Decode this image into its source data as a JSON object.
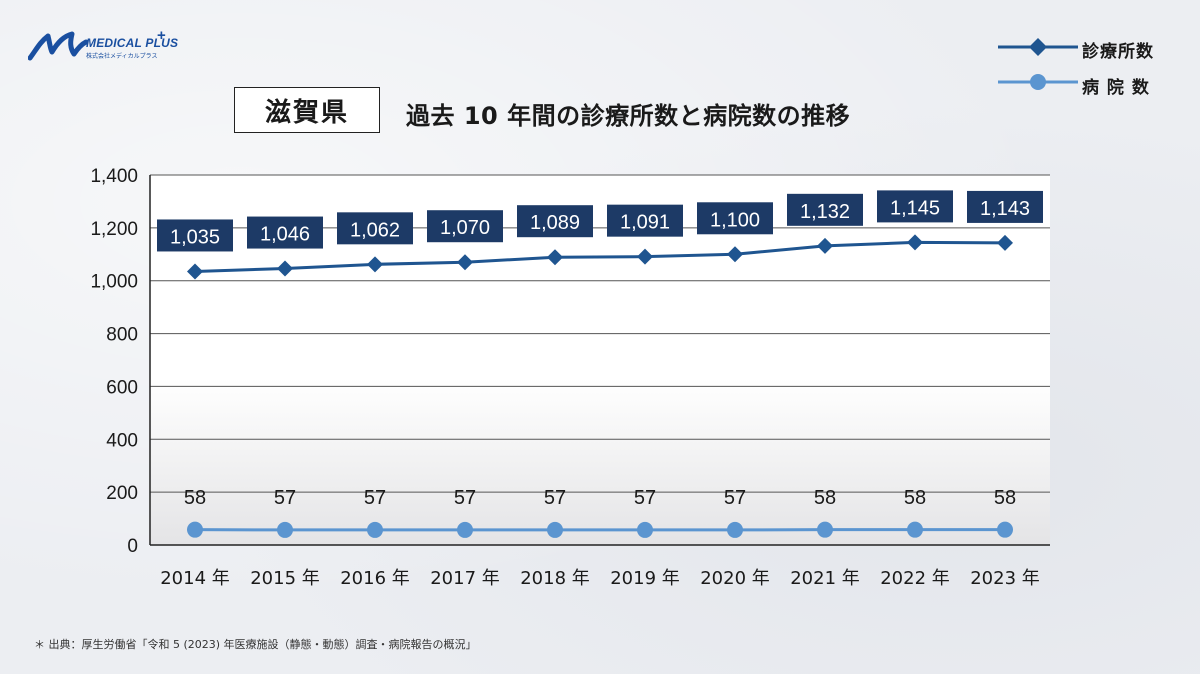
{
  "logo": {
    "name": "MEDICAL PLUS",
    "plus": "+",
    "company": "株式会社メディカルプラス"
  },
  "header": {
    "prefecture": "滋賀県",
    "title": "過去 10 年間の診療所数と病院数の推移"
  },
  "colors": {
    "clinics": "#1f5590",
    "clinic_label_bg": "#1d3a66",
    "hospitals": "#5b95d0"
  },
  "chart_data": {
    "type": "line",
    "categories": [
      "2014 年",
      "2015 年",
      "2016 年",
      "2017 年",
      "2018 年",
      "2019 年",
      "2020 年",
      "2021 年",
      "2022 年",
      "2023 年"
    ],
    "series": [
      {
        "name": "診療所数",
        "values": [
          1035,
          1046,
          1062,
          1070,
          1089,
          1091,
          1100,
          1132,
          1145,
          1143
        ],
        "labels": [
          "1,035",
          "1,046",
          "1,062",
          "1,070",
          "1,089",
          "1,091",
          "1,100",
          "1,132",
          "1,145",
          "1,143"
        ],
        "marker": "diamond"
      },
      {
        "name": "病 院 数",
        "values": [
          58,
          57,
          57,
          57,
          57,
          57,
          57,
          58,
          58,
          58
        ],
        "labels": [
          "58",
          "57",
          "57",
          "57",
          "57",
          "57",
          "57",
          "58",
          "58",
          "58"
        ],
        "marker": "circle"
      }
    ],
    "ylim": [
      0,
      1400
    ],
    "yticks": [
      0,
      200,
      400,
      600,
      800,
      1000,
      1200,
      1400
    ],
    "ytick_labels": [
      "0",
      "200",
      "400",
      "600",
      "800",
      "1,000",
      "1,200",
      "1,400"
    ],
    "grid": true,
    "legend_position": "top-right"
  },
  "source": "＊ 出典：厚生労働省「令和 5 (2023) 年医療施設（静態・動態）調査・病院報告の概況」"
}
